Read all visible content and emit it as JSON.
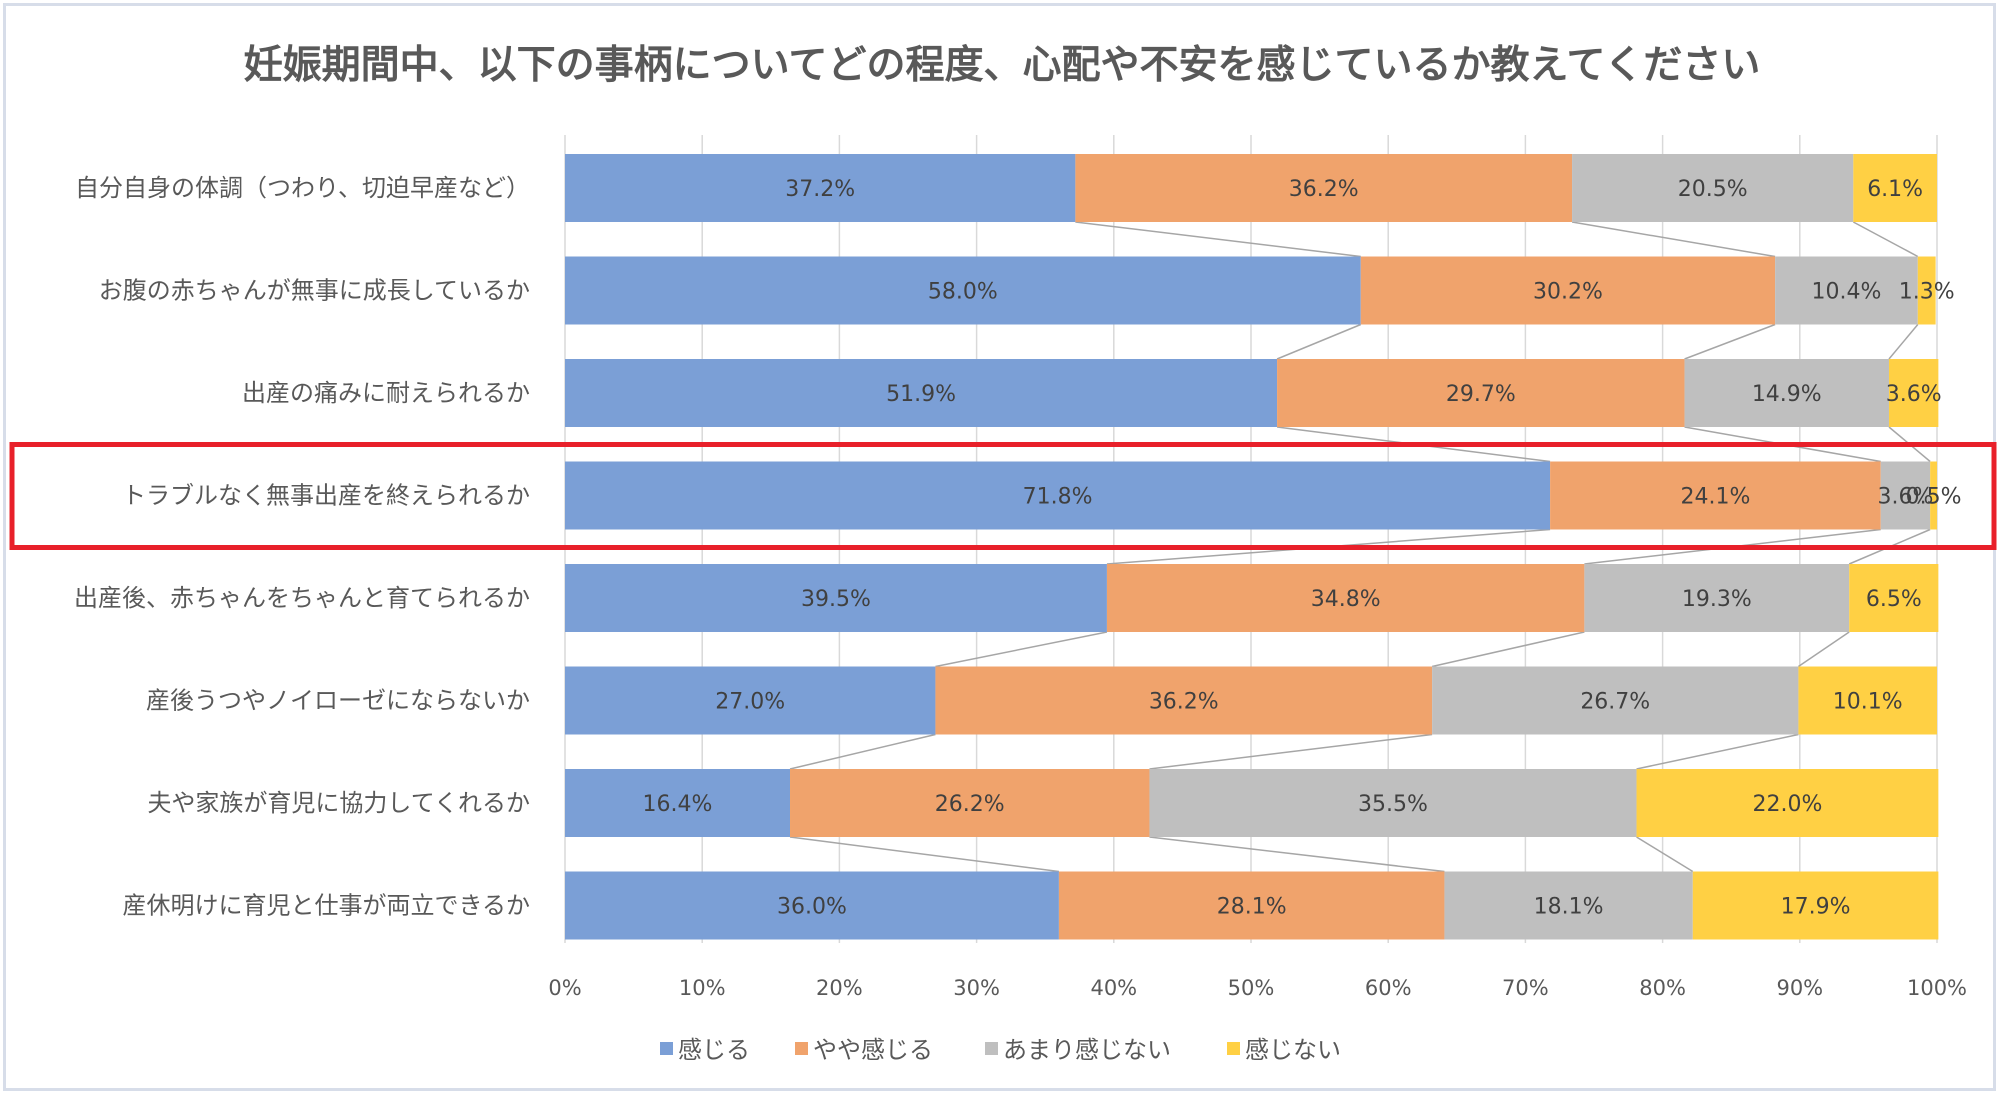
{
  "chart_data": {
    "type": "bar",
    "orientation": "horizontal",
    "stacked": "100%",
    "title": "妊娠期間中、以下の事柄についてどの程度、心配や不安を感じているか教えてください",
    "categories": [
      "自分自身の体調（つわり、切迫早産など）",
      "お腹の赤ちゃんが無事に成長しているか",
      "出産の痛みに耐えられるか",
      "トラブルなく無事出産を終えられるか",
      "出産後、赤ちゃんをちゃんと育てられるか",
      "産後うつやノイローゼにならないか",
      "夫や家族が育児に協力してくれるか",
      "産休明けに育児と仕事が両立できるか"
    ],
    "series": [
      {
        "name": "感じる",
        "color": "#7b9fd6",
        "values": [
          37.2,
          58.0,
          51.9,
          71.8,
          39.5,
          27.0,
          16.4,
          36.0
        ]
      },
      {
        "name": "やや感じる",
        "color": "#f0a36c",
        "values": [
          36.2,
          30.2,
          29.7,
          24.1,
          34.8,
          36.2,
          26.2,
          28.1
        ]
      },
      {
        "name": "あまり感じない",
        "color": "#bfbfbf",
        "values": [
          20.5,
          10.4,
          14.9,
          3.6,
          19.3,
          26.7,
          35.5,
          18.1
        ]
      },
      {
        "name": "感じない",
        "color": "#ffd044",
        "values": [
          6.1,
          1.3,
          3.6,
          0.5,
          6.5,
          10.1,
          22.0,
          17.9
        ]
      }
    ],
    "data_labels": [
      [
        "37.2%",
        "58.0%",
        "51.9%",
        "71.8%",
        "39.5%",
        "27.0%",
        "16.4%",
        "36.0%"
      ],
      [
        "36.2%",
        "30.2%",
        "29.7%",
        "24.1%",
        "34.8%",
        "36.2%",
        "26.2%",
        "28.1%"
      ],
      [
        "20.5%",
        "10.4%",
        "14.9%",
        "3.6%",
        "19.3%",
        "26.7%",
        "35.5%",
        "18.1%"
      ],
      [
        "6.1%",
        "1.3%",
        "3.6%",
        "0.5%",
        "6.5%",
        "10.1%",
        "22.0%",
        "17.9%"
      ]
    ],
    "x_ticks": [
      "0%",
      "10%",
      "20%",
      "30%",
      "40%",
      "50%",
      "60%",
      "70%",
      "80%",
      "90%",
      "100%"
    ],
    "xlim": [
      0,
      100
    ],
    "grid": true,
    "series_lines": true,
    "legend_position": "bottom",
    "highlight_category": "トラブルなく無事出産を終えられるか",
    "highlight_color": "#e8202a"
  }
}
